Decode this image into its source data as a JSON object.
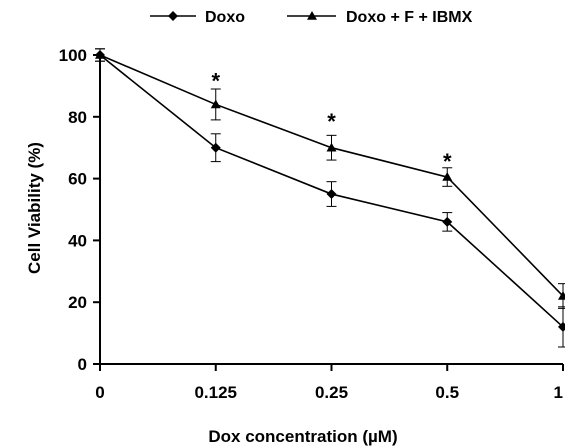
{
  "chart_data": {
    "type": "line",
    "title": "",
    "xlabel": "Dox concentration (µM)",
    "ylabel": "Cell Viability (%)",
    "categories": [
      "0",
      "0.125",
      "0.25",
      "0.5",
      "1"
    ],
    "ylim": [
      0,
      100
    ],
    "yticks": [
      0,
      20,
      40,
      60,
      80,
      100
    ],
    "grid": false,
    "legend_position": "top",
    "series": [
      {
        "name": "Doxo",
        "marker": "diamond",
        "values": [
          100,
          70,
          55,
          46,
          12
        ],
        "errors": [
          2,
          4.5,
          4,
          3,
          6.5
        ]
      },
      {
        "name": "Doxo + F + IBMX",
        "marker": "triangle",
        "values": [
          100,
          84,
          70,
          60.5,
          22
        ],
        "errors": [
          2,
          5,
          4,
          3,
          4
        ]
      }
    ],
    "annotations": [
      {
        "text": "*",
        "category": "0.125",
        "y": 93
      },
      {
        "text": "*",
        "category": "0.25",
        "y": 80
      },
      {
        "text": "*",
        "category": "0.5",
        "y": 67
      }
    ]
  }
}
